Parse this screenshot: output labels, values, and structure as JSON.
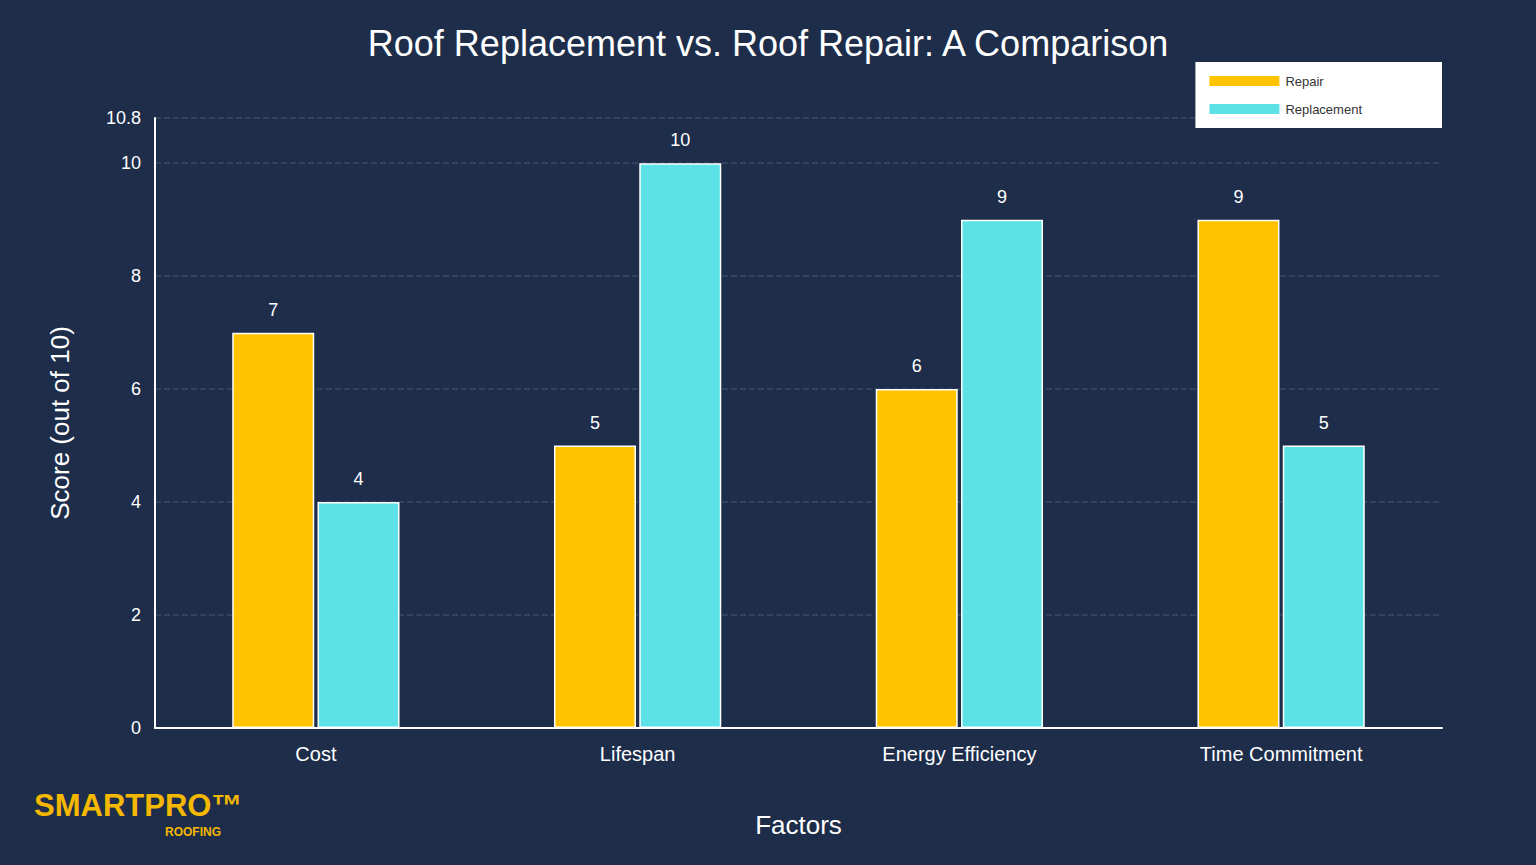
{
  "chart_data": {
    "type": "bar",
    "title": "Roof Replacement vs. Roof Repair: A Comparison",
    "x_label": "Factors",
    "y_label": "Score (out of 10)",
    "categories": [
      "Cost",
      "Lifespan",
      "Energy Efficiency",
      "Time Commitment"
    ],
    "series": [
      {
        "name": "Repair",
        "color": "#ffc300",
        "values": [
          7,
          5,
          6,
          9
        ]
      },
      {
        "name": "Replacement",
        "color": "#5ce1e6",
        "values": [
          4,
          10,
          9,
          5
        ]
      }
    ],
    "ylim": [
      0,
      10.8
    ],
    "yticks": [
      0,
      2,
      4,
      6,
      8,
      10
    ],
    "grid": true,
    "legend": "upper right",
    "data_labels": true,
    "annotations": [
      "SMARTPRO™",
      "ROOFING"
    ]
  }
}
